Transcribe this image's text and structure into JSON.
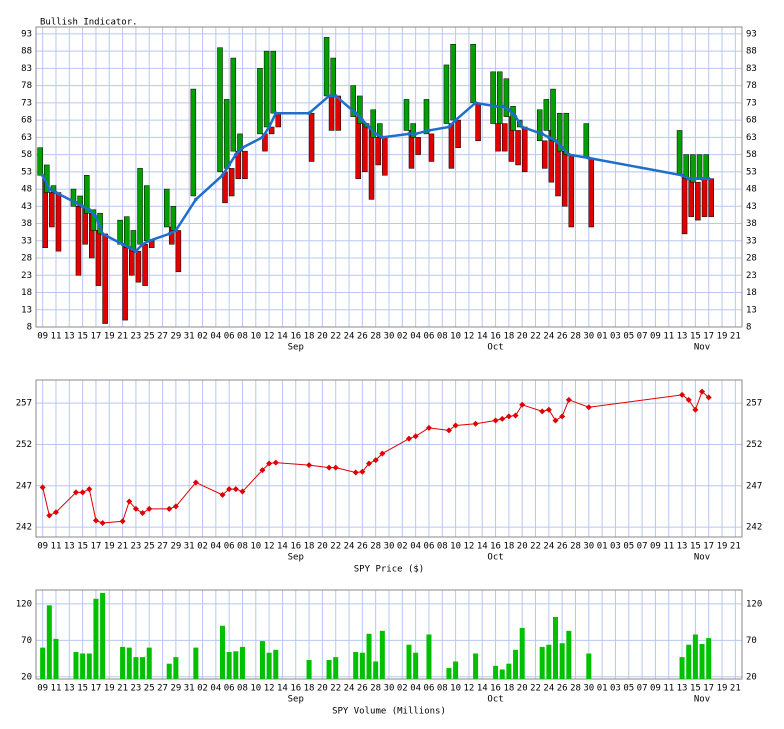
{
  "chart_data": [
    {
      "type": "floating-bar",
      "title": "Bullish Indicator.",
      "x": [
        0,
        1,
        2,
        5,
        6,
        7,
        8,
        9,
        12,
        13,
        14,
        15,
        16,
        19,
        20,
        23,
        27,
        28,
        29,
        30,
        33,
        34,
        35,
        40,
        43,
        44,
        47,
        48,
        49,
        50,
        51,
        55,
        56,
        58,
        61,
        62,
        65,
        68,
        69,
        70,
        71,
        72,
        75,
        76,
        77,
        78,
        79,
        82,
        96,
        97,
        98,
        99,
        100
      ],
      "xlim": [
        -1,
        105
      ],
      "xticks": [
        {
          "value": 0,
          "label": "09"
        },
        {
          "value": 2,
          "label": "11"
        },
        {
          "value": 4,
          "label": "13"
        },
        {
          "value": 6,
          "label": "15"
        },
        {
          "value": 8,
          "label": "17"
        },
        {
          "value": 10,
          "label": "19"
        },
        {
          "value": 12,
          "label": "21"
        },
        {
          "value": 14,
          "label": "23"
        },
        {
          "value": 16,
          "label": "25"
        },
        {
          "value": 18,
          "label": "27"
        },
        {
          "value": 20,
          "label": "29"
        },
        {
          "value": 22,
          "label": "31"
        },
        {
          "value": 24,
          "label": "02"
        },
        {
          "value": 26,
          "label": "04"
        },
        {
          "value": 28,
          "label": "06"
        },
        {
          "value": 30,
          "label": "08"
        },
        {
          "value": 32,
          "label": "10"
        },
        {
          "value": 34,
          "label": "12"
        },
        {
          "value": 36,
          "label": "14"
        },
        {
          "value": 38,
          "label": "16"
        },
        {
          "value": 40,
          "label": "18"
        },
        {
          "value": 42,
          "label": "20"
        },
        {
          "value": 44,
          "label": "22"
        },
        {
          "value": 46,
          "label": "24"
        },
        {
          "value": 48,
          "label": "26"
        },
        {
          "value": 50,
          "label": "28"
        },
        {
          "value": 52,
          "label": "30"
        },
        {
          "value": 54,
          "label": "02"
        },
        {
          "value": 56,
          "label": "04"
        },
        {
          "value": 58,
          "label": "06"
        },
        {
          "value": 60,
          "label": "08"
        },
        {
          "value": 62,
          "label": "10"
        },
        {
          "value": 64,
          "label": "12"
        },
        {
          "value": 66,
          "label": "14"
        },
        {
          "value": 68,
          "label": "16"
        },
        {
          "value": 70,
          "label": "18"
        },
        {
          "value": 72,
          "label": "20"
        },
        {
          "value": 74,
          "label": "22"
        },
        {
          "value": 76,
          "label": "24"
        },
        {
          "value": 78,
          "label": "26"
        },
        {
          "value": 80,
          "label": "28"
        },
        {
          "value": 82,
          "label": "30"
        },
        {
          "value": 84,
          "label": "01"
        },
        {
          "value": 86,
          "label": "03"
        },
        {
          "value": 88,
          "label": "05"
        },
        {
          "value": 90,
          "label": "07"
        },
        {
          "value": 92,
          "label": "09"
        },
        {
          "value": 94,
          "label": "11"
        },
        {
          "value": 96,
          "label": "13"
        },
        {
          "value": 98,
          "label": "15"
        },
        {
          "value": 100,
          "label": "17"
        },
        {
          "value": 102,
          "label": "19"
        },
        {
          "value": 104,
          "label": "21"
        }
      ],
      "month_labels": [
        {
          "value": 38,
          "label": "Sep"
        },
        {
          "value": 68,
          "label": "Oct"
        },
        {
          "value": 99,
          "label": "Nov"
        }
      ],
      "ylim": [
        8,
        95
      ],
      "yticks": [
        8,
        13,
        18,
        23,
        28,
        33,
        38,
        43,
        48,
        53,
        58,
        63,
        68,
        73,
        78,
        83,
        88,
        93
      ],
      "grid": true,
      "green": {
        "color": "#00a000",
        "high": [
          60,
          55,
          49,
          48,
          46,
          52,
          42,
          41,
          39,
          40,
          36,
          54,
          49,
          48,
          43,
          77,
          89,
          74,
          86,
          64,
          83,
          88,
          88,
          null,
          92,
          86,
          78,
          75,
          67,
          71,
          67,
          74,
          67,
          74,
          84,
          90,
          90,
          82,
          82,
          80,
          72,
          68,
          71,
          74,
          77,
          70,
          70,
          67,
          65,
          58,
          58,
          58,
          58
        ],
        "low": [
          52,
          47,
          47,
          43,
          43,
          41,
          36,
          35,
          32,
          31,
          30,
          32,
          33,
          37,
          36,
          46,
          53,
          54,
          59,
          59,
          64,
          66,
          70,
          null,
          75,
          75,
          69,
          67,
          66,
          63,
          63,
          65,
          63,
          64,
          67,
          68,
          73,
          67,
          67,
          69,
          65,
          66,
          62,
          65,
          62,
          59,
          58,
          57,
          52,
          51,
          50,
          51,
          51
        ]
      },
      "red": {
        "color": "#e00000",
        "high": [
          52,
          47,
          47,
          43,
          43,
          41,
          36,
          35,
          32,
          31,
          30,
          32,
          33,
          37,
          36,
          null,
          53,
          54,
          59,
          59,
          64,
          66,
          70,
          70,
          75,
          75,
          69,
          67,
          66,
          63,
          63,
          65,
          63,
          64,
          67,
          68,
          73,
          67,
          67,
          69,
          65,
          66,
          62,
          65,
          62,
          59,
          58,
          57,
          52,
          51,
          50,
          51,
          51
        ],
        "low": [
          31,
          37,
          30,
          23,
          32,
          28,
          20,
          9,
          10,
          23,
          21,
          20,
          31,
          32,
          24,
          null,
          44,
          46,
          51,
          51,
          59,
          64,
          66,
          56,
          65,
          65,
          51,
          53,
          45,
          55,
          52,
          54,
          58,
          56,
          54,
          60,
          62,
          59,
          59,
          56,
          55,
          53,
          54,
          50,
          46,
          43,
          37,
          37,
          35,
          40,
          39,
          40,
          40
        ]
      },
      "line": {
        "color": "#1e6fcc",
        "values": [
          52,
          48,
          47,
          44,
          43,
          42,
          40,
          35,
          32,
          31,
          30,
          32,
          33,
          35,
          36,
          45,
          52,
          55,
          58,
          60,
          63,
          66,
          70,
          70,
          75,
          75,
          70,
          68,
          66,
          64,
          63,
          64,
          64,
          65,
          66,
          68,
          73,
          72,
          72,
          71,
          69,
          66,
          64,
          63,
          62,
          60,
          58,
          57,
          52,
          51,
          51,
          51,
          51
        ]
      }
    },
    {
      "type": "line",
      "xlabel": "SPY Price ($)",
      "color": "#e00000",
      "ylim": [
        240.8,
        259.8
      ],
      "yticks": [
        242,
        247,
        252,
        257
      ],
      "grid": true,
      "values": [
        246.8,
        243.4,
        243.8,
        246.2,
        246.2,
        246.6,
        242.8,
        242.5,
        242.7,
        245.1,
        244.2,
        243.7,
        244.2,
        244.2,
        244.5,
        247.4,
        245.9,
        246.6,
        246.6,
        246.3,
        248.9,
        249.7,
        249.8,
        249.5,
        249.2,
        249.2,
        248.6,
        248.7,
        249.7,
        250.1,
        250.9,
        252.7,
        253,
        254.0,
        253.7,
        254.3,
        254.5,
        254.9,
        255.1,
        255.4,
        255.5,
        256.8,
        256.0,
        256.2,
        254.9,
        255.4,
        257.4,
        256.5,
        258.0,
        257.4,
        256.2,
        258.4,
        257.7
      ]
    },
    {
      "type": "bar",
      "xlabel": "SPY Volume (Millions)",
      "color": "#00c000",
      "ylim": [
        17,
        139
      ],
      "yticks": [
        20,
        70,
        120
      ],
      "grid": true,
      "values": [
        60,
        118,
        72,
        54,
        52,
        52,
        127,
        135,
        61,
        60,
        47,
        47,
        60,
        38,
        47,
        60,
        90,
        54,
        55,
        61,
        69,
        53,
        57,
        43,
        43,
        47,
        54,
        53,
        79,
        41,
        83,
        64,
        53,
        78,
        32,
        41,
        52,
        35,
        30,
        38,
        57,
        87,
        61,
        64,
        102,
        66,
        83,
        52,
        47,
        64,
        78,
        65,
        73
      ]
    }
  ]
}
